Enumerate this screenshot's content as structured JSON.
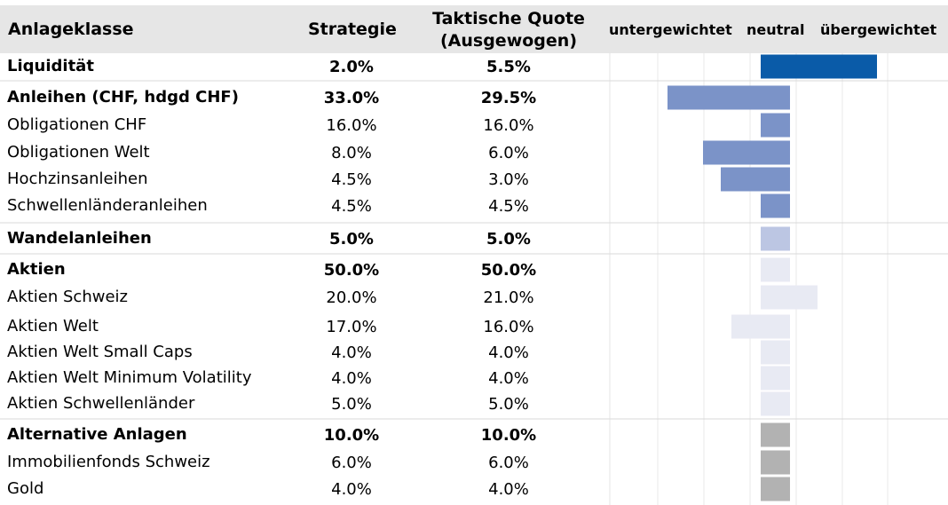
{
  "header": {
    "col_class": "Anlageklasse",
    "col_strategy": "Strategie",
    "col_tactical_line1": "Taktische Quote",
    "col_tactical_line2": "(Ausgewogen)",
    "scale_under": "untergewichtet",
    "scale_neutral": "neutral",
    "scale_over": "übergewichtet"
  },
  "colors": {
    "liquidity": "#0a5ba8",
    "bonds": "#7b93c8",
    "convertibles": "#bcc6e3",
    "equities": "#e8eaf3",
    "alternatives": "#b2b2b2",
    "header_bg": "#e6e6e6",
    "grid": "#d9d9d9"
  },
  "chart_data": {
    "type": "bar",
    "orientation": "horizontal",
    "baseline": "neutral",
    "rows": [
      {
        "label": "Liquidität",
        "strategy": "2.0%",
        "tactical": "5.5%",
        "bold": true,
        "group": "liquidity",
        "deviation": 3.5
      },
      {
        "label": "Anleihen (CHF, hdgd CHF)",
        "strategy": "33.0%",
        "tactical": "29.5%",
        "bold": true,
        "group": "bonds",
        "deviation": -3.5
      },
      {
        "label": "Obligationen CHF",
        "strategy": "16.0%",
        "tactical": "16.0%",
        "bold": false,
        "group": "bonds",
        "deviation": 0
      },
      {
        "label": "Obligationen Welt",
        "strategy": "8.0%",
        "tactical": "6.0%",
        "bold": false,
        "group": "bonds",
        "deviation": -2.0
      },
      {
        "label": "Hochzinsanleihen",
        "strategy": "4.5%",
        "tactical": "3.0%",
        "bold": false,
        "group": "bonds",
        "deviation": -1.5
      },
      {
        "label": "Schwellenländeranleihen",
        "strategy": "4.5%",
        "tactical": "4.5%",
        "bold": false,
        "group": "bonds",
        "deviation": 0
      },
      {
        "label": "Wandelanleihen",
        "strategy": "5.0%",
        "tactical": "5.0%",
        "bold": true,
        "group": "convertibles",
        "deviation": 0
      },
      {
        "label": "Aktien",
        "strategy": "50.0%",
        "tactical": "50.0%",
        "bold": true,
        "group": "equities",
        "deviation": 0
      },
      {
        "label": "Aktien Schweiz",
        "strategy": "20.0%",
        "tactical": "21.0%",
        "bold": false,
        "group": "equities",
        "deviation": 1.0
      },
      {
        "label": "Aktien Welt",
        "strategy": "17.0%",
        "tactical": "16.0%",
        "bold": false,
        "group": "equities",
        "deviation": -1.0
      },
      {
        "label": "Aktien Welt Small Caps",
        "strategy": "4.0%",
        "tactical": "4.0%",
        "bold": false,
        "group": "equities",
        "deviation": 0
      },
      {
        "label": "Aktien Welt Minimum Volatility",
        "strategy": "4.0%",
        "tactical": "4.0%",
        "bold": false,
        "group": "equities",
        "deviation": 0
      },
      {
        "label": "Aktien Schwellenländer",
        "strategy": "5.0%",
        "tactical": "5.0%",
        "bold": false,
        "group": "equities",
        "deviation": 0
      },
      {
        "label": "Alternative Anlagen",
        "strategy": "10.0%",
        "tactical": "10.0%",
        "bold": true,
        "group": "alternatives",
        "deviation": 0
      },
      {
        "label": "Immobilienfonds Schweiz",
        "strategy": "6.0%",
        "tactical": "6.0%",
        "bold": false,
        "group": "alternatives",
        "deviation": 0
      },
      {
        "label": "Gold",
        "strategy": "4.0%",
        "tactical": "4.0%",
        "bold": false,
        "group": "alternatives",
        "deviation": 0
      }
    ]
  }
}
